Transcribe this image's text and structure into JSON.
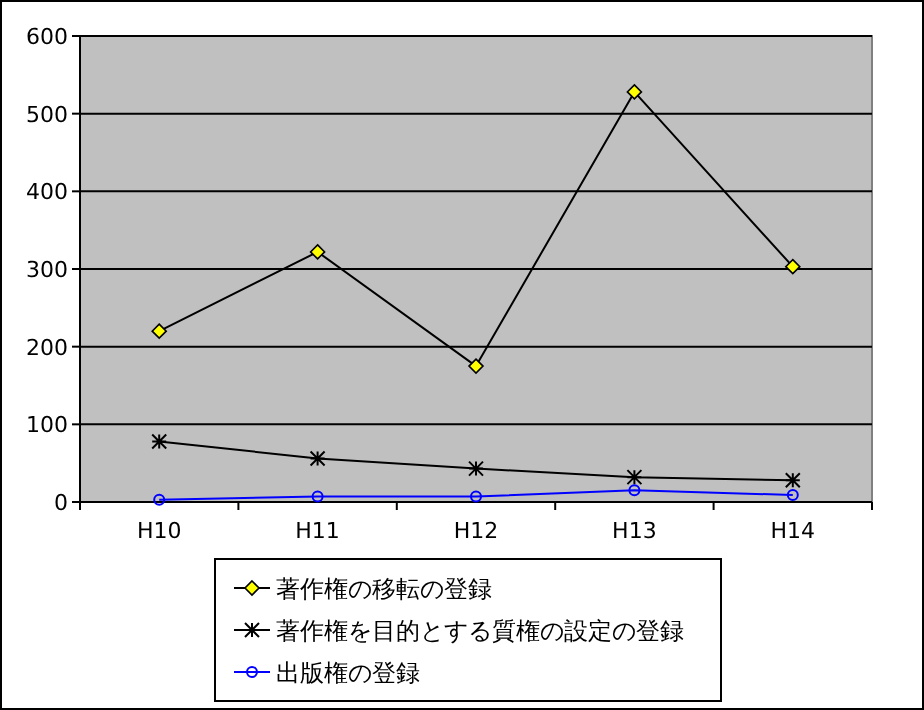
{
  "chart_data": {
    "type": "line",
    "categories": [
      "H10",
      "H11",
      "H12",
      "H13",
      "H14"
    ],
    "series": [
      {
        "name": "著作権の移転の登録",
        "color": "#000000",
        "marker": "diamond",
        "values": [
          220,
          322,
          175,
          528,
          303
        ]
      },
      {
        "name": "著作権を目的とする質権の設定の登録",
        "color": "#000000",
        "marker": "cross",
        "values": [
          78,
          56,
          43,
          32,
          28
        ]
      },
      {
        "name": "出版権の登録",
        "color": "#0000ff",
        "marker": "circle",
        "values": [
          3,
          7,
          7,
          15,
          9
        ]
      }
    ],
    "ylim": [
      0,
      600
    ],
    "yticks": [
      0,
      100,
      200,
      300,
      400,
      500,
      600
    ],
    "grid": "y",
    "legend": "bottom",
    "line_style": "solid"
  }
}
